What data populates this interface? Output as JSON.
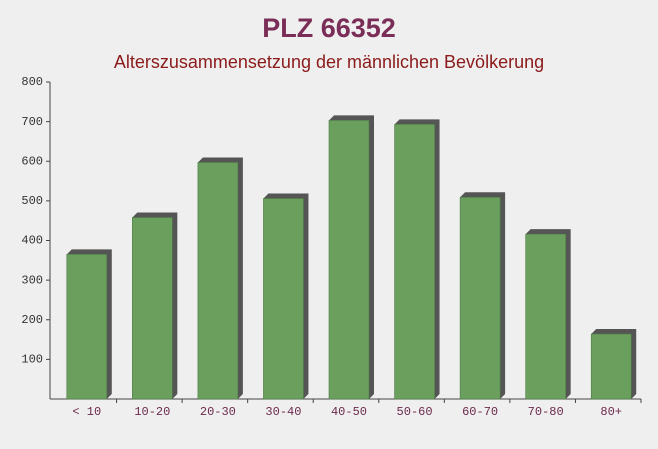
{
  "chart_data": {
    "type": "bar",
    "title": "PLZ 66352",
    "subtitle": "Alterszusammensetzung der männlichen Bevölkerung",
    "categories": [
      "< 10",
      "10-20",
      "20-30",
      "30-40",
      "40-50",
      "50-60",
      "60-70",
      "70-80",
      "80+"
    ],
    "values": [
      365,
      458,
      597,
      506,
      703,
      693,
      509,
      416,
      164
    ],
    "color": "#6a9f5e",
    "ylim": [
      0,
      800
    ],
    "yticks": [
      100,
      200,
      300,
      400,
      500,
      600,
      700,
      800
    ],
    "grid": false
  }
}
